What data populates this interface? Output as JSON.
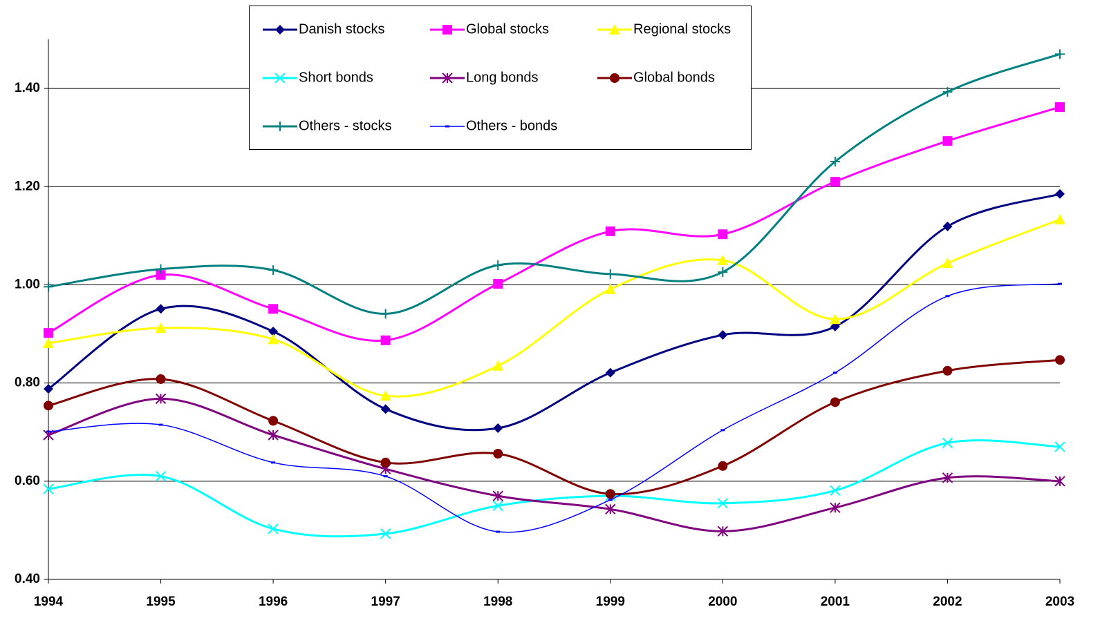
{
  "chart_data": {
    "type": "line",
    "x": [
      1994,
      1995,
      1996,
      1997,
      1998,
      1999,
      2000,
      2001,
      2002,
      2003
    ],
    "xlim": [
      1994,
      2003
    ],
    "xticks": [
      1994,
      1995,
      1996,
      1997,
      1998,
      1999,
      2000,
      2001,
      2002,
      2003
    ],
    "ylim": [
      0.4,
      1.5
    ],
    "yticks": [
      {
        "value": 0.4,
        "label": "0.40"
      },
      {
        "value": 0.6,
        "label": "0.60"
      },
      {
        "value": 0.8,
        "label": "0.80"
      },
      {
        "value": 1.0,
        "label": "1.00"
      },
      {
        "value": 1.2,
        "label": "1.20"
      },
      {
        "value": 1.4,
        "label": "1.40"
      }
    ],
    "grid": true,
    "legend": "top",
    "series": [
      {
        "name": "Danish stocks",
        "color": "#000080",
        "marker": "diamond",
        "values": [
          0.788,
          0.951,
          0.905,
          0.747,
          0.708,
          0.821,
          0.898,
          0.915,
          1.119,
          1.185
        ]
      },
      {
        "name": "Global stocks",
        "color": "#ff00ff",
        "marker": "square",
        "values": [
          0.902,
          1.02,
          0.951,
          0.887,
          1.002,
          1.109,
          1.103,
          1.21,
          1.293,
          1.362
        ]
      },
      {
        "name": "Regional stocks",
        "color": "#ffff00",
        "marker": "triangle",
        "values": [
          0.881,
          0.912,
          0.889,
          0.774,
          0.835,
          0.991,
          1.05,
          0.93,
          1.044,
          1.133
        ]
      },
      {
        "name": "Short bonds",
        "color": "#00ffff",
        "marker": "x",
        "values": [
          0.584,
          0.61,
          0.503,
          0.493,
          0.55,
          0.57,
          0.555,
          0.581,
          0.678,
          0.67
        ]
      },
      {
        "name": "Long bonds",
        "color": "#800080",
        "marker": "star",
        "values": [
          0.694,
          0.768,
          0.694,
          0.625,
          0.57,
          0.543,
          0.498,
          0.546,
          0.607,
          0.6
        ]
      },
      {
        "name": "Global bonds",
        "color": "#800000",
        "marker": "circle",
        "values": [
          0.754,
          0.808,
          0.723,
          0.638,
          0.656,
          0.574,
          0.631,
          0.761,
          0.825,
          0.847
        ]
      },
      {
        "name": "Others - stocks",
        "color": "#008080",
        "marker": "plus",
        "values": [
          0.996,
          1.032,
          1.03,
          0.941,
          1.04,
          1.022,
          1.026,
          1.251,
          1.393,
          1.47
        ]
      },
      {
        "name": "Others - bonds",
        "color": "#0000ff",
        "marker": "dash",
        "values": [
          0.701,
          0.715,
          0.638,
          0.61,
          0.497,
          0.562,
          0.704,
          0.821,
          0.977,
          1.002
        ]
      }
    ]
  }
}
